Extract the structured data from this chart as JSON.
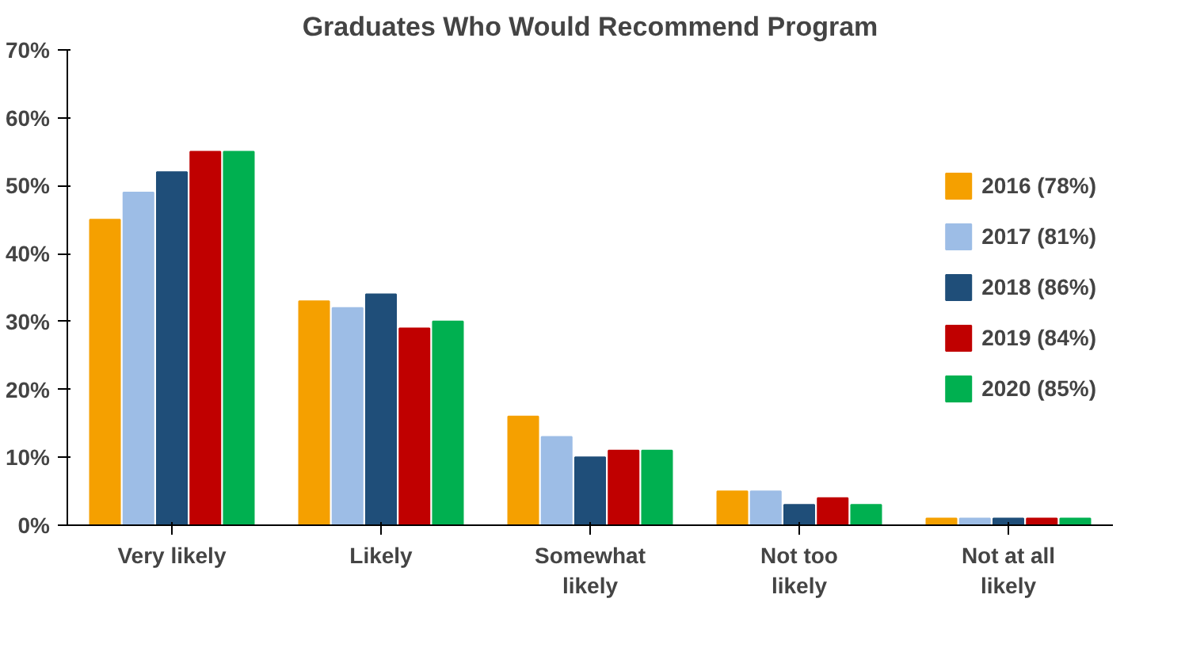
{
  "chart_data": {
    "type": "bar",
    "title": "Graduates Who Would Recommend Program",
    "categories": [
      "Very likely",
      "Likely",
      "Somewhat\nlikely",
      "Not too\nlikely",
      "Not at all\nlikely"
    ],
    "series": [
      {
        "name": "2016 (78%)",
        "color": "#f5a000",
        "values": [
          45,
          33,
          16,
          5,
          1
        ]
      },
      {
        "name": "2017 (81%)",
        "color": "#9dbde6",
        "values": [
          49,
          32,
          13,
          5,
          1
        ]
      },
      {
        "name": "2018 (86%)",
        "color": "#1f4e79",
        "values": [
          52,
          34,
          10,
          3,
          1
        ]
      },
      {
        "name": "2019 (84%)",
        "color": "#c00000",
        "values": [
          55,
          29,
          11,
          4,
          1
        ]
      },
      {
        "name": "2020 (85%)",
        "color": "#00b050",
        "values": [
          55,
          30,
          11,
          3,
          1
        ]
      }
    ],
    "ylim": [
      0,
      70
    ],
    "yticks": [
      {
        "value": 0,
        "label": "0%"
      },
      {
        "value": 10,
        "label": "10%"
      },
      {
        "value": 20,
        "label": "20%"
      },
      {
        "value": 30,
        "label": "30%"
      },
      {
        "value": 40,
        "label": "40%"
      },
      {
        "value": 50,
        "label": "50%"
      },
      {
        "value": 60,
        "label": "60%"
      },
      {
        "value": 70,
        "label": "70%"
      }
    ],
    "grid": false,
    "legend": "right"
  }
}
